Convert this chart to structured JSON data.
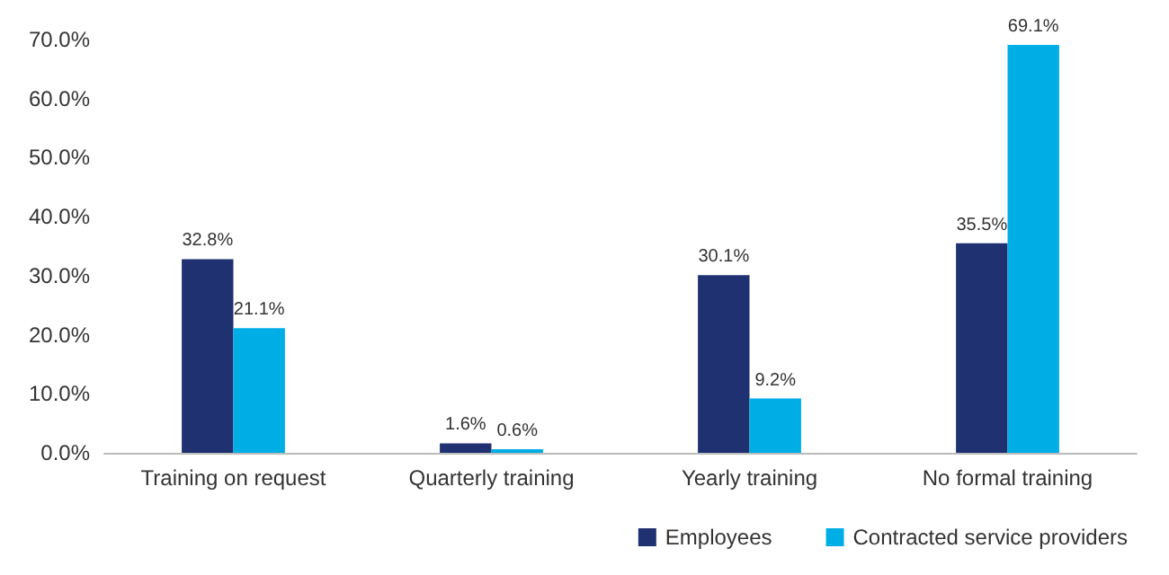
{
  "chart_data": {
    "type": "bar",
    "categories": [
      "Training on request",
      "Quarterly training",
      "Yearly training",
      "No formal training"
    ],
    "series": [
      {
        "name": "Employees",
        "color": "#1f3170",
        "values": [
          32.8,
          1.6,
          30.1,
          35.5
        ],
        "value_labels": [
          "32.8%",
          "1.6%",
          "30.1%",
          "35.5%"
        ]
      },
      {
        "name": "Contracted service providers",
        "color": "#00aee6",
        "values": [
          21.1,
          0.6,
          9.2,
          69.1
        ],
        "value_labels": [
          "21.1%",
          "0.6%",
          "9.2%",
          "69.1%"
        ]
      }
    ],
    "ylim": [
      0,
      70
    ],
    "yticks": [
      {
        "value": 0,
        "label": "0.0%"
      },
      {
        "value": 10,
        "label": "10.0%"
      },
      {
        "value": 20,
        "label": "20.0%"
      },
      {
        "value": 30,
        "label": "30.0%"
      },
      {
        "value": 40,
        "label": "40.0%"
      },
      {
        "value": 50,
        "label": "50.0%"
      },
      {
        "value": 60,
        "label": "60.0%"
      },
      {
        "value": 70,
        "label": "70.0%"
      }
    ],
    "legend": "bottom right",
    "grid": false
  }
}
